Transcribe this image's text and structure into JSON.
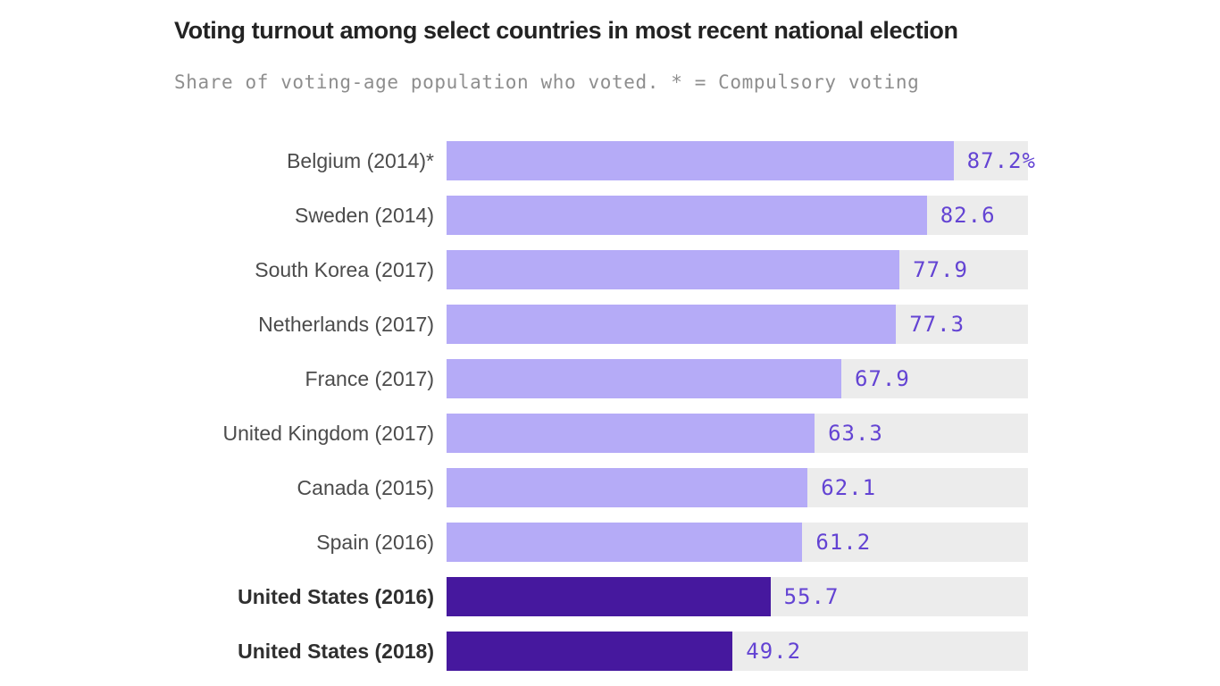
{
  "colors": {
    "background": "#ffffff",
    "bar": "#b5abf7",
    "bar_highlight": "#46189e",
    "track": "#ececec",
    "value_text": "#6343d3",
    "title_text": "#232323",
    "label_text": "#4b4b4b",
    "label_text_highlight": "#2f2f2f",
    "subtitle_text": "#8e8e8e"
  },
  "chart_data": {
    "type": "bar",
    "orientation": "horizontal",
    "title": "Voting turnout among select countries in most recent national election",
    "subtitle": "Share of voting-age population who voted. * = Compulsory voting",
    "xlim": [
      0,
      100
    ],
    "grid": false,
    "legend": "none",
    "categories": [
      "Belgium (2014)*",
      "Sweden (2014)",
      "South Korea (2017)",
      "Netherlands (2017)",
      "France (2017)",
      "United Kingdom (2017)",
      "Canada (2015)",
      "Spain (2016)",
      "United States (2016)",
      "United States (2018)"
    ],
    "values": [
      87.2,
      82.6,
      77.9,
      77.3,
      67.9,
      63.3,
      62.1,
      61.2,
      55.7,
      49.2
    ],
    "value_labels": [
      "87.2%",
      "82.6",
      "77.9",
      "77.3",
      "67.9",
      "63.3",
      "62.1",
      "61.2",
      "55.7",
      "49.2"
    ],
    "highlight": [
      false,
      false,
      false,
      false,
      false,
      false,
      false,
      false,
      true,
      true
    ]
  }
}
